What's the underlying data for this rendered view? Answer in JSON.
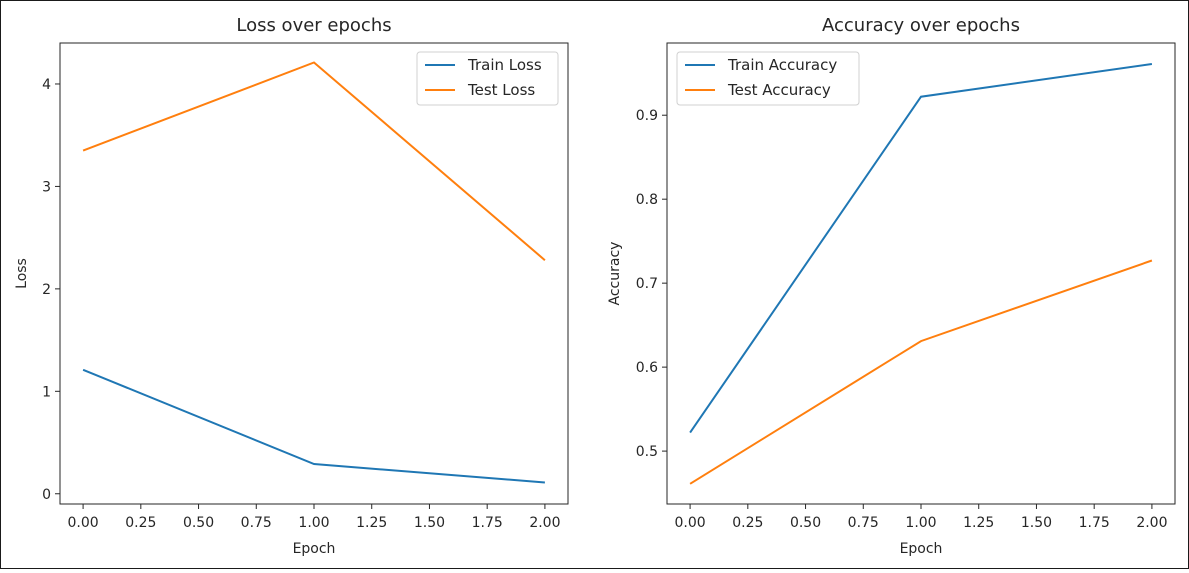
{
  "colors": {
    "train": "#1f77b4",
    "test": "#ff7f0e",
    "axis": "#262626",
    "legend_border": "#d0d0d0"
  },
  "chart_data": [
    {
      "type": "line",
      "title": "Loss over epochs",
      "xlabel": "Epoch",
      "ylabel": "Loss",
      "xlim": [
        -0.1,
        2.1
      ],
      "ylim": [
        -0.1,
        4.4
      ],
      "xticks": [
        0.0,
        0.25,
        0.5,
        0.75,
        1.0,
        1.25,
        1.5,
        1.75,
        2.0
      ],
      "xtick_labels": [
        "0.00",
        "0.25",
        "0.50",
        "0.75",
        "1.00",
        "1.25",
        "1.50",
        "1.75",
        "2.00"
      ],
      "yticks": [
        0,
        1,
        2,
        3,
        4
      ],
      "ytick_labels": [
        "0",
        "1",
        "2",
        "3",
        "4"
      ],
      "x": [
        0,
        1,
        2
      ],
      "series": [
        {
          "name": "Train Loss",
          "color_key": "train",
          "values": [
            1.21,
            0.29,
            0.11
          ]
        },
        {
          "name": "Test Loss",
          "color_key": "test",
          "values": [
            3.35,
            4.21,
            2.28
          ]
        }
      ],
      "legend": "top-right",
      "grid": false
    },
    {
      "type": "line",
      "title": "Accuracy over epochs",
      "xlabel": "Epoch",
      "ylabel": "Accuracy",
      "xlim": [
        -0.1,
        2.1
      ],
      "ylim": [
        0.437,
        0.986
      ],
      "xticks": [
        0.0,
        0.25,
        0.5,
        0.75,
        1.0,
        1.25,
        1.5,
        1.75,
        2.0
      ],
      "xtick_labels": [
        "0.00",
        "0.25",
        "0.50",
        "0.75",
        "1.00",
        "1.25",
        "1.50",
        "1.75",
        "2.00"
      ],
      "yticks": [
        0.5,
        0.6,
        0.7,
        0.8,
        0.9
      ],
      "ytick_labels": [
        "0.5",
        "0.6",
        "0.7",
        "0.8",
        "0.9"
      ],
      "x": [
        0,
        1,
        2
      ],
      "series": [
        {
          "name": "Train Accuracy",
          "color_key": "train",
          "values": [
            0.522,
            0.922,
            0.961
          ]
        },
        {
          "name": "Test Accuracy",
          "color_key": "test",
          "values": [
            0.461,
            0.631,
            0.727
          ]
        }
      ],
      "legend": "top-left",
      "grid": false
    }
  ]
}
